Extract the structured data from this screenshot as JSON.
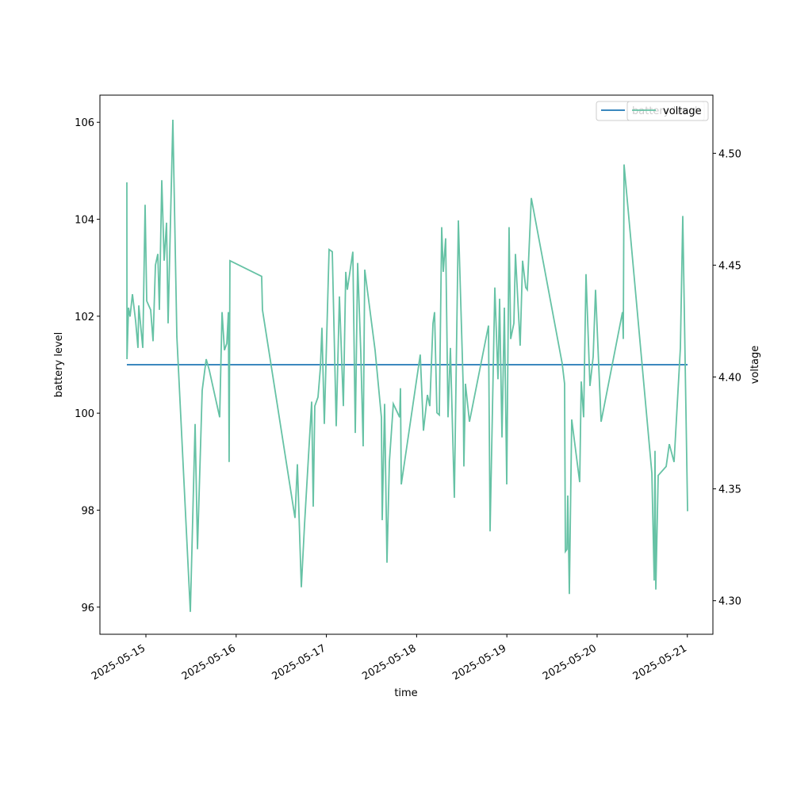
{
  "chart_data": {
    "type": "line",
    "xlabel": "time",
    "ylabel": "battery level",
    "y2label": "voltage",
    "xlim": [
      "2025-05-14T11:46",
      "2025-05-21T06:48"
    ],
    "xticks": [
      "2025-05-15",
      "2025-05-16",
      "2025-05-17",
      "2025-05-18",
      "2025-05-19",
      "2025-05-20",
      "2025-05-21"
    ],
    "ylim": [
      95.44,
      106.56
    ],
    "yticks": [
      96,
      98,
      100,
      102,
      104,
      106
    ],
    "y2lim": [
      4.285,
      4.526
    ],
    "y2ticks": [
      {
        "value": 4.3,
        "label": "4.30"
      },
      4.35,
      {
        "value": 4.4,
        "label": "4.40"
      },
      4.45,
      {
        "value": 4.5,
        "label": "4.50"
      }
    ],
    "legend": "upper right",
    "series": [
      {
        "name": "battery level",
        "color": "#1f77b4",
        "x": [
          "2025-05-14T18:56",
          "2025-05-21T00:04"
        ],
        "values": [
          101,
          101
        ]
      },
      {
        "name": "voltage",
        "color": "#66c2a5",
        "axis": "y2",
        "x": [
          "2025-05-14T18:56",
          "2025-05-14T18:58",
          "2025-05-14T19:22",
          "2025-05-14T19:47",
          "2025-05-14T20:25",
          "2025-05-14T21:16",
          "2025-05-14T21:53",
          "2025-05-14T22:06",
          "2025-05-14T23:10",
          "2025-05-14T23:47",
          "2025-05-15T00:13",
          "2025-05-15T01:16",
          "2025-05-15T01:54",
          "2025-05-15T02:32",
          "2025-05-15T03:10",
          "2025-05-15T03:35",
          "2025-05-15T04:13",
          "2025-05-15T04:51",
          "2025-05-15T05:29",
          "2025-05-15T05:54",
          "2025-05-15T07:10",
          "2025-05-15T08:14",
          "2025-05-15T11:49",
          "2025-05-15T13:05",
          "2025-05-15T13:43",
          "2025-05-15T14:58",
          "2025-05-15T16:02",
          "2025-05-15T16:52",
          "2025-05-15T19:37",
          "2025-05-15T20:15",
          "2025-05-15T20:53",
          "2025-05-15T21:31",
          "2025-05-15T21:56",
          "2025-05-15T22:08",
          "2025-05-15T22:21",
          "2025-05-16T06:47",
          "2025-05-16T07:00",
          "2025-05-16T15:39",
          "2025-05-16T16:17",
          "2025-05-16T17:20",
          "2025-05-16T18:11",
          "2025-05-16T20:05",
          "2025-05-16T20:30",
          "2025-05-16T20:55",
          "2025-05-16T21:46",
          "2025-05-16T22:24",
          "2025-05-16T22:49",
          "2025-05-16T23:27",
          "2025-05-17T00:43",
          "2025-05-17T01:34",
          "2025-05-17T02:37",
          "2025-05-17T03:28",
          "2025-05-17T04:31",
          "2025-05-17T05:09",
          "2025-05-17T05:34",
          "2025-05-17T07:02",
          "2025-05-17T07:41",
          "2025-05-17T08:19",
          "2025-05-17T09:09",
          "2025-05-17T09:47",
          "2025-05-17T10:12",
          "2025-05-17T12:57",
          "2025-05-17T14:38",
          "2025-05-17T14:51",
          "2025-05-17T15:29",
          "2025-05-17T16:07",
          "2025-05-17T16:45",
          "2025-05-17T17:48",
          "2025-05-17T19:29",
          "2025-05-17T19:42",
          "2025-05-17T19:55",
          "2025-05-18T00:58",
          "2025-05-18T01:49",
          "2025-05-18T02:52",
          "2025-05-18T03:30",
          "2025-05-18T04:21",
          "2025-05-18T04:46",
          "2025-05-18T05:24",
          "2025-05-18T06:02",
          "2025-05-18T06:40",
          "2025-05-18T07:05",
          "2025-05-18T07:43",
          "2025-05-18T08:21",
          "2025-05-18T08:59",
          "2025-05-18T10:02",
          "2025-05-18T11:06",
          "2025-05-18T12:22",
          "2025-05-18T12:34",
          "2025-05-18T12:59",
          "2025-05-18T14:03",
          "2025-05-18T19:07",
          "2025-05-18T19:32",
          "2025-05-18T20:48",
          "2025-05-18T21:38",
          "2025-05-18T22:04",
          "2025-05-18T22:42",
          "2025-05-18T23:20",
          "2025-05-18T23:58",
          "2025-05-19T00:35",
          "2025-05-19T01:01",
          "2025-05-19T01:52",
          "2025-05-19T02:17",
          "2025-05-19T03:32",
          "2025-05-19T04:11",
          "2025-05-19T05:01",
          "2025-05-19T05:26",
          "2025-05-19T06:30",
          "2025-05-19T14:43",
          "2025-05-19T15:21",
          "2025-05-19T15:34",
          "2025-05-19T15:59",
          "2025-05-19T16:12",
          "2025-05-19T16:37",
          "2025-05-19T17:15",
          "2025-05-19T19:22",
          "2025-05-19T19:47",
          "2025-05-19T20:25",
          "2025-05-19T21:03",
          "2025-05-19T22:06",
          "2025-05-19T22:57",
          "2025-05-19T23:35",
          "2025-05-20T01:04",
          "2025-05-20T06:45",
          "2025-05-20T06:58",
          "2025-05-20T07:10",
          "2025-05-20T14:34",
          "2025-05-20T15:11",
          "2025-05-20T15:24",
          "2025-05-20T15:37",
          "2025-05-20T16:15",
          "2025-05-20T18:22",
          "2025-05-20T19:12",
          "2025-05-20T20:28",
          "2025-05-20T22:09",
          "2025-05-20T22:47",
          "2025-05-21T00:04"
        ],
        "values": [
          4.487,
          4.408,
          4.431,
          4.427,
          4.437,
          4.425,
          4.413,
          4.432,
          4.413,
          4.477,
          4.434,
          4.43,
          4.416,
          4.45,
          4.455,
          4.43,
          4.488,
          4.452,
          4.469,
          4.424,
          4.515,
          4.418,
          4.295,
          4.379,
          4.323,
          4.394,
          4.408,
          4.403,
          4.382,
          4.429,
          4.412,
          4.415,
          4.429,
          4.362,
          4.452,
          4.445,
          4.43,
          4.337,
          4.361,
          4.306,
          4.334,
          4.389,
          4.342,
          4.387,
          4.391,
          4.404,
          4.422,
          4.379,
          4.457,
          4.456,
          4.378,
          4.436,
          4.387,
          4.447,
          4.439,
          4.456,
          4.375,
          4.451,
          4.411,
          4.369,
          4.448,
          4.412,
          4.382,
          4.336,
          4.388,
          4.317,
          4.362,
          4.388,
          4.382,
          4.395,
          4.352,
          4.41,
          4.376,
          4.392,
          4.387,
          4.424,
          4.429,
          4.384,
          4.383,
          4.467,
          4.447,
          4.462,
          4.382,
          4.413,
          4.346,
          4.47,
          4.397,
          4.36,
          4.397,
          4.38,
          4.423,
          4.331,
          4.44,
          4.399,
          4.435,
          4.373,
          4.431,
          4.352,
          4.467,
          4.417,
          4.424,
          4.455,
          4.414,
          4.452,
          4.44,
          4.439,
          4.48,
          4.406,
          4.397,
          4.322,
          4.323,
          4.347,
          4.303,
          4.381,
          4.353,
          4.398,
          4.382,
          4.446,
          4.396,
          4.409,
          4.439,
          4.38,
          4.429,
          4.417,
          4.495,
          4.357,
          4.309,
          4.367,
          4.305,
          4.356,
          4.36,
          4.37,
          4.362,
          4.413,
          4.472,
          4.34
        ]
      }
    ]
  }
}
